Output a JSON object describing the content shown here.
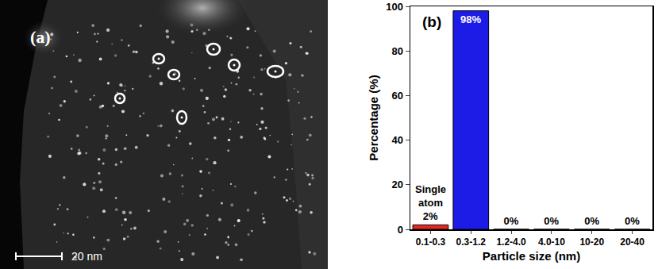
{
  "panel_a": {
    "label": "(a)",
    "scale_bar": "20 nm"
  },
  "chart_data": {
    "type": "bar",
    "panel_label": "(b)",
    "categories": [
      "0.1-0.3",
      "0.3-1.2",
      "1.2-4.0",
      "4.0-10",
      "10-20",
      "20-40"
    ],
    "values": [
      2,
      98,
      0,
      0,
      0,
      0
    ],
    "value_labels": [
      "2%",
      "98%",
      "0%",
      "0%",
      "0%",
      "0%"
    ],
    "colors": [
      "#e8261e",
      "#1c1ce6",
      "#1c1ce6",
      "#1c1ce6",
      "#1c1ce6",
      "#1c1ce6"
    ],
    "x_label": "Particle size (nm)",
    "y_label": "Percentage (%)",
    "ylim": [
      0,
      100
    ],
    "yticks": [
      0,
      20,
      40,
      60,
      80,
      100
    ],
    "grid": false,
    "data_labels": true,
    "annotations": [
      {
        "text": "Single atom",
        "x": "0.1-0.3"
      }
    ]
  }
}
